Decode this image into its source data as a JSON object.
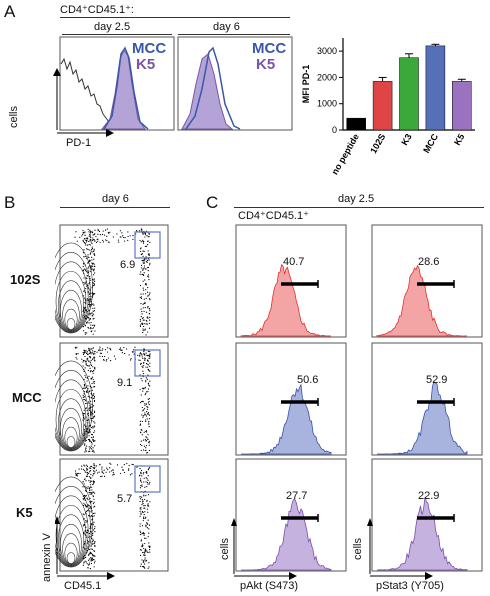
{
  "panel_a": {
    "label": "A",
    "header": "CD4⁺CD45.1⁺:",
    "subheaders": [
      "day 2.5",
      "day 6"
    ],
    "legend": [
      {
        "text": "MCC",
        "color": "#3a57a8"
      },
      {
        "text": "K5",
        "color": "#7b55a6"
      }
    ],
    "y_axis": "cells",
    "x_axis": "PD-1"
  },
  "panel_b": {
    "label": "B",
    "header": "day 6",
    "rows": [
      "102S",
      "MCC",
      "K5"
    ],
    "values": [
      "6.9",
      "9.1",
      "5.7"
    ],
    "y_axis": "annexin V",
    "x_axis": "CD45.1"
  },
  "panel_c": {
    "label": "C",
    "header": "day 2.5",
    "subheader": "CD4⁺CD45.1⁺",
    "col1_values": [
      "40.7",
      "50.6",
      "27.7"
    ],
    "col2_values": [
      "28.6",
      "52.9",
      "22.9"
    ],
    "col1_x": "pAkt (S473)",
    "col2_x": "pStat3 (Y705)",
    "y_axis": "cells"
  },
  "chart_data": {
    "type": "bar",
    "title": "",
    "xlabel": "",
    "ylabel": "MFI PD-1",
    "ylim": [
      0,
      3500
    ],
    "yticks": [
      0,
      1000,
      2000,
      3000
    ],
    "categories": [
      "no peptide",
      "102S",
      "K3",
      "MCC",
      "K5"
    ],
    "values": [
      450,
      1850,
      2750,
      3200,
      1850
    ],
    "errors": [
      0,
      150,
      150,
      60,
      80
    ],
    "colors": [
      "#000000",
      "#e04545",
      "#3aa83a",
      "#5570b8",
      "#9a72c0"
    ]
  }
}
